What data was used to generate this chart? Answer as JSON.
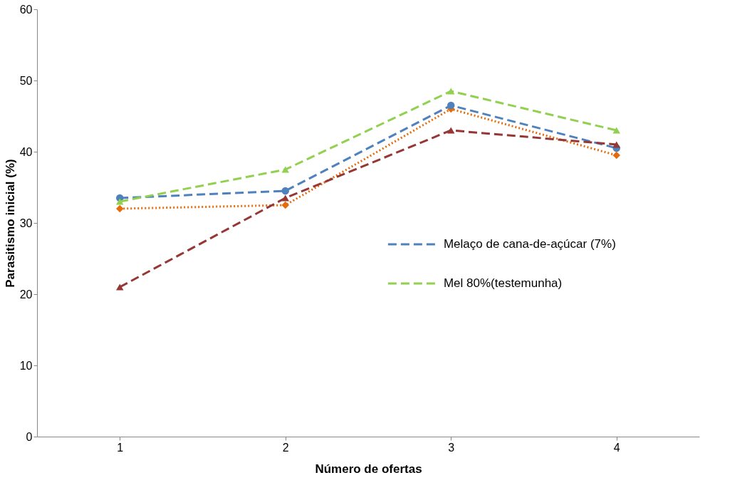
{
  "chart_data": {
    "type": "line",
    "xlabel": "Número de ofertas",
    "ylabel": "Parasitismo inicial (%)",
    "categories": [
      "1",
      "2",
      "3",
      "4"
    ],
    "series": [
      {
        "color": "#e46c0a",
        "values": [
          32,
          32.5,
          46,
          39.5
        ],
        "marker": "diamond",
        "line_style": "dotted"
      },
      {
        "name": "Melaço de cana-de-açúcar (7%)",
        "color": "#4f81bd",
        "values": [
          33.5,
          34.5,
          46.5,
          40.5
        ],
        "marker": "circle",
        "line_style": "dashed"
      },
      {
        "color": "#953735",
        "values": [
          21,
          33.5,
          43,
          41
        ],
        "marker": "triangle",
        "line_style": "dashed"
      },
      {
        "name": "Mel 80%(testemunha)",
        "color": "#92d050",
        "values": [
          33,
          37.5,
          48.5,
          43
        ],
        "marker": "triangle",
        "line_style": "dashed"
      }
    ],
    "ylim": [
      0,
      60
    ],
    "yticks": [
      0,
      10,
      20,
      30,
      40,
      50,
      60
    ],
    "grid": false,
    "legend": "right"
  }
}
